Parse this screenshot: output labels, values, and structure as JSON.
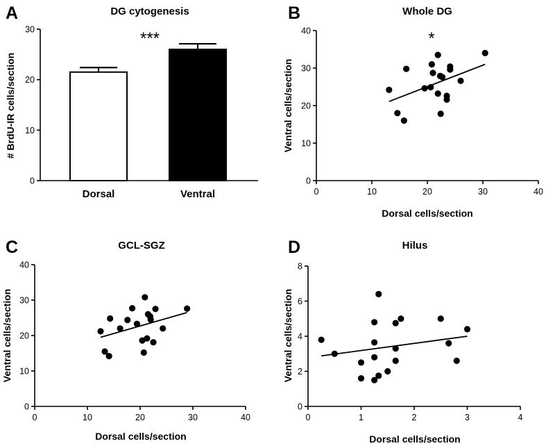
{
  "chart_data": [
    {
      "id": "A",
      "type": "bar",
      "panel_label": "A",
      "title": "DG cytogenesis",
      "categories": [
        "Dorsal",
        "Ventral"
      ],
      "values": [
        21.5,
        26.0
      ],
      "errors": [
        0.9,
        1.1
      ],
      "bar_colors": [
        "#ffffff",
        "#000000"
      ],
      "ylabel": "# BrdU-IR cells/section",
      "ylim": [
        0,
        30
      ],
      "yticks": [
        "0",
        "10",
        "20",
        "30"
      ],
      "significance": "***"
    },
    {
      "id": "B",
      "type": "scatter",
      "panel_label": "B",
      "title": "Whole DG",
      "xlabel": "Dorsal cells/section",
      "ylabel": "Ventral cells/section",
      "xlim": [
        0,
        40
      ],
      "ylim": [
        0,
        40
      ],
      "xticks": [
        "0",
        "10",
        "20",
        "30",
        "40"
      ],
      "yticks": [
        "0",
        "10",
        "20",
        "30",
        "40"
      ],
      "significance": "*",
      "points": [
        [
          13.1,
          24.2
        ],
        [
          14.6,
          18.0
        ],
        [
          15.8,
          16.0
        ],
        [
          16.2,
          29.8
        ],
        [
          19.5,
          24.6
        ],
        [
          20.6,
          24.9
        ],
        [
          20.8,
          31.0
        ],
        [
          21.0,
          28.7
        ],
        [
          21.9,
          33.5
        ],
        [
          22.3,
          27.9
        ],
        [
          21.9,
          23.2
        ],
        [
          22.4,
          17.8
        ],
        [
          22.7,
          27.6
        ],
        [
          23.5,
          22.6
        ],
        [
          23.5,
          21.6
        ],
        [
          24.1,
          29.6
        ],
        [
          24.1,
          30.4
        ],
        [
          26.0,
          26.6
        ],
        [
          30.4,
          34.0
        ]
      ],
      "fit": [
        [
          13.1,
          21.1
        ],
        [
          30.4,
          31.0
        ]
      ]
    },
    {
      "id": "C",
      "type": "scatter",
      "panel_label": "C",
      "title": "GCL-SGZ",
      "xlabel": "Dorsal cells/section",
      "ylabel": "Ventral cells/section",
      "xlim": [
        0,
        40
      ],
      "ylim": [
        0,
        40
      ],
      "xticks": [
        "0",
        "10",
        "20",
        "30",
        "40"
      ],
      "yticks": [
        "0",
        "10",
        "20",
        "30",
        "40"
      ],
      "points": [
        [
          12.5,
          21.2
        ],
        [
          13.3,
          15.5
        ],
        [
          14.1,
          14.2
        ],
        [
          14.3,
          24.8
        ],
        [
          16.2,
          22.0
        ],
        [
          17.6,
          24.4
        ],
        [
          18.5,
          27.7
        ],
        [
          19.4,
          23.3
        ],
        [
          20.4,
          18.6
        ],
        [
          20.9,
          30.8
        ],
        [
          20.7,
          15.2
        ],
        [
          21.3,
          19.2
        ],
        [
          21.5,
          26.0
        ],
        [
          22.0,
          24.5
        ],
        [
          21.9,
          25.4
        ],
        [
          22.5,
          18.1
        ],
        [
          22.9,
          27.5
        ],
        [
          24.3,
          22.0
        ],
        [
          28.9,
          27.6
        ]
      ],
      "fit": [
        [
          12.5,
          19.5
        ],
        [
          28.9,
          26.5
        ]
      ]
    },
    {
      "id": "D",
      "type": "scatter",
      "panel_label": "D",
      "title": "Hilus",
      "xlabel": "Dorsal cells/section",
      "ylabel": "Ventral cells/section",
      "xlim": [
        0,
        4
      ],
      "ylim": [
        0,
        8
      ],
      "xticks": [
        "0",
        "1",
        "2",
        "3",
        "4"
      ],
      "yticks": [
        "0",
        "2",
        "4",
        "6",
        "8"
      ],
      "points": [
        [
          0.25,
          3.8
        ],
        [
          0.5,
          3.0
        ],
        [
          1.0,
          2.5
        ],
        [
          1.0,
          1.6
        ],
        [
          1.25,
          4.8
        ],
        [
          1.25,
          3.65
        ],
        [
          1.25,
          2.8
        ],
        [
          1.25,
          1.5
        ],
        [
          1.33,
          6.4
        ],
        [
          1.33,
          1.75
        ],
        [
          1.5,
          2.0
        ],
        [
          1.65,
          4.75
        ],
        [
          1.65,
          3.3
        ],
        [
          1.65,
          2.6
        ],
        [
          1.75,
          5.0
        ],
        [
          2.5,
          5.0
        ],
        [
          2.65,
          3.6
        ],
        [
          2.8,
          2.6
        ],
        [
          3.0,
          4.4
        ]
      ],
      "fit": [
        [
          0.25,
          2.88
        ],
        [
          3.0,
          4.0
        ]
      ]
    }
  ]
}
